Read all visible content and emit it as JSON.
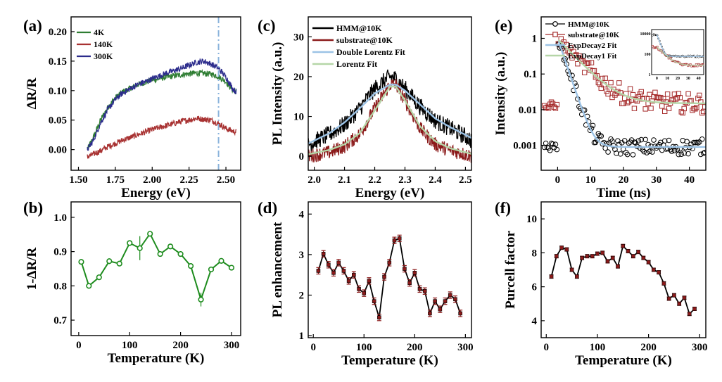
{
  "chart_data": [
    {
      "id": "a",
      "panel_label": "(a)",
      "type": "line",
      "xlabel": "Energy (eV)",
      "ylabel": "ΔR/R",
      "xlim": [
        1.45,
        2.6
      ],
      "ylim": [
        -0.035,
        0.225
      ],
      "xticks": [
        "1.50",
        "1.75",
        "2.00",
        "2.25",
        "2.50"
      ],
      "xtick_values": [
        1.5,
        1.75,
        2.0,
        2.25,
        2.5
      ],
      "yticks": [
        "0.00",
        "0.05",
        "0.10",
        "0.15",
        "0.20"
      ],
      "ytick_values": [
        0.0,
        0.05,
        0.1,
        0.15,
        0.2
      ],
      "vline": {
        "x": 2.45,
        "color": "#8bb4dc"
      },
      "legend_position": "top-left",
      "series": [
        {
          "name": "4K",
          "color": "#2e7d32",
          "noise": 0.005,
          "x": [
            1.56,
            1.6,
            1.65,
            1.7,
            1.75,
            1.8,
            1.9,
            2.0,
            2.1,
            2.2,
            2.3,
            2.4,
            2.45,
            2.5,
            2.55,
            2.57
          ],
          "y": [
            0.0,
            0.02,
            0.05,
            0.072,
            0.088,
            0.098,
            0.11,
            0.118,
            0.123,
            0.127,
            0.13,
            0.128,
            0.124,
            0.115,
            0.1,
            0.098
          ]
        },
        {
          "name": "140K",
          "color": "#a83232",
          "noise": 0.005,
          "x": [
            1.56,
            1.6,
            1.65,
            1.7,
            1.8,
            1.9,
            2.0,
            2.1,
            2.2,
            2.3,
            2.4,
            2.45,
            2.5,
            2.55,
            2.57
          ],
          "y": [
            -0.012,
            -0.008,
            -0.002,
            0.005,
            0.016,
            0.025,
            0.034,
            0.041,
            0.048,
            0.053,
            0.05,
            0.044,
            0.036,
            0.031,
            0.03
          ]
        },
        {
          "name": "300K",
          "color": "#2c2c8c",
          "noise": 0.005,
          "x": [
            1.56,
            1.6,
            1.65,
            1.7,
            1.75,
            1.8,
            1.9,
            2.0,
            2.1,
            2.2,
            2.3,
            2.35,
            2.4,
            2.45,
            2.5,
            2.55,
            2.57
          ],
          "y": [
            0.0,
            0.015,
            0.045,
            0.068,
            0.085,
            0.096,
            0.11,
            0.12,
            0.13,
            0.138,
            0.148,
            0.15,
            0.145,
            0.138,
            0.123,
            0.102,
            0.098
          ]
        }
      ]
    },
    {
      "id": "b",
      "panel_label": "(b)",
      "type": "line",
      "xlabel": "Temperature (K)",
      "ylabel": "1-ΔR/R",
      "xlim": [
        -15,
        318
      ],
      "ylim": [
        0.655,
        1.045
      ],
      "xticks": [
        "0",
        "100",
        "200",
        "300"
      ],
      "xtick_values": [
        0,
        100,
        200,
        300
      ],
      "yticks": [
        "0.7",
        "0.8",
        "0.9",
        "1.0"
      ],
      "ytick_values": [
        0.7,
        0.8,
        0.9,
        1.0
      ],
      "marker": "circle-open",
      "series": [
        {
          "name": "1-ΔR/R",
          "color": "#1e8c1e",
          "x": [
            5,
            20,
            40,
            60,
            80,
            100,
            120,
            140,
            160,
            180,
            200,
            220,
            240,
            260,
            280,
            300
          ],
          "y": [
            0.87,
            0.8,
            0.825,
            0.872,
            0.865,
            0.925,
            0.91,
            0.952,
            0.893,
            0.915,
            0.893,
            0.858,
            0.76,
            0.848,
            0.873,
            0.853
          ],
          "err": [
            0.008,
            0.008,
            0.008,
            0.008,
            0.008,
            0.008,
            0.035,
            0.008,
            0.008,
            0.008,
            0.008,
            0.008,
            0.02,
            0.008,
            0.008,
            0.008
          ]
        }
      ]
    },
    {
      "id": "c",
      "panel_label": "(c)",
      "type": "line",
      "xlabel": "Energy (eV)",
      "ylabel": "PL Intensity (a.u.)",
      "xlim": [
        1.98,
        2.52
      ],
      "ylim": [
        -3.5,
        35
      ],
      "xticks": [
        "2.0",
        "2.1",
        "2.2",
        "2.3",
        "2.4",
        "2.5"
      ],
      "xtick_values": [
        2.0,
        2.1,
        2.2,
        2.3,
        2.4,
        2.5
      ],
      "yticks": [
        "0",
        "10",
        "20",
        "30"
      ],
      "ytick_values": [
        0,
        10,
        20,
        30
      ],
      "legend_position": "top-left",
      "series": [
        {
          "name": "HMM@10K",
          "color": "#000000",
          "noise": 2.2,
          "style": "noisy",
          "x": [
            1.98,
            2.05,
            2.1,
            2.15,
            2.2,
            2.25,
            2.27,
            2.3,
            2.35,
            2.4,
            2.45,
            2.5,
            2.52
          ],
          "y": [
            3,
            5.5,
            8,
            12,
            17,
            20,
            19.5,
            17,
            12.5,
            9,
            7,
            5,
            4
          ]
        },
        {
          "name": "substrate@10K",
          "color": "#8b1a1a",
          "noise": 1.8,
          "style": "noisy",
          "x": [
            1.98,
            2.05,
            2.1,
            2.15,
            2.2,
            2.25,
            2.27,
            2.3,
            2.35,
            2.4,
            2.45,
            2.5,
            2.52
          ],
          "y": [
            0,
            1,
            2.5,
            5.5,
            12,
            18,
            18,
            14,
            7,
            3,
            1.5,
            0.5,
            0
          ]
        },
        {
          "name": "Double Lorentz Fit",
          "color": "#9cc3e6",
          "style": "fit",
          "x": [
            1.98,
            2.05,
            2.1,
            2.15,
            2.2,
            2.25,
            2.27,
            2.3,
            2.35,
            2.4,
            2.45,
            2.5,
            2.52
          ],
          "y": [
            3.2,
            5.8,
            8.5,
            12,
            15.8,
            18,
            18,
            16.5,
            13,
            9.5,
            7.3,
            5.4,
            4.6
          ]
        },
        {
          "name": "Lorentz Fit",
          "color": "#b5d6a7",
          "style": "fit",
          "x": [
            1.98,
            2.05,
            2.1,
            2.15,
            2.2,
            2.25,
            2.27,
            2.3,
            2.35,
            2.4,
            2.45,
            2.5,
            2.52
          ],
          "y": [
            0.5,
            1.6,
            3,
            5.8,
            11.5,
            17.5,
            17.5,
            14,
            7.5,
            3.8,
            2,
            1,
            0.6
          ]
        }
      ]
    },
    {
      "id": "d",
      "panel_label": "(d)",
      "type": "line",
      "xlabel": "Temperature (K)",
      "ylabel": "PL enhancement",
      "xlim": [
        -10,
        312
      ],
      "ylim": [
        0.95,
        4.3
      ],
      "xticks": [
        "0",
        "100",
        "200",
        "300"
      ],
      "xtick_values": [
        0,
        100,
        200,
        300
      ],
      "yticks": [
        "1",
        "2",
        "3",
        "4"
      ],
      "ytick_values": [
        1,
        2,
        3,
        4
      ],
      "marker": "square-filled",
      "series": [
        {
          "name": "PL enhancement",
          "color": "#8b1a1a",
          "line_color": "#000000",
          "x": [
            10,
            20,
            30,
            40,
            50,
            60,
            70,
            80,
            90,
            100,
            110,
            120,
            130,
            140,
            150,
            160,
            170,
            180,
            190,
            200,
            210,
            220,
            230,
            240,
            250,
            260,
            270,
            280,
            290
          ],
          "y": [
            2.6,
            3.02,
            2.75,
            2.55,
            2.8,
            2.6,
            2.35,
            2.5,
            2.15,
            2.05,
            2.35,
            1.85,
            1.45,
            2.45,
            2.8,
            3.35,
            3.4,
            2.65,
            2.3,
            2.55,
            2.15,
            2.1,
            1.55,
            1.85,
            1.65,
            1.85,
            2.0,
            1.9,
            1.55
          ],
          "err": 0.08
        }
      ]
    },
    {
      "id": "e",
      "panel_label": "(e)",
      "type": "scatter",
      "xlabel": "Time (ns)",
      "ylabel": "Intensity (a.u.)",
      "yscale": "log",
      "xlim": [
        -5,
        45
      ],
      "ylim": [
        0.0002,
        4
      ],
      "xticks": [
        "0",
        "10",
        "20",
        "30",
        "40"
      ],
      "xtick_values": [
        0,
        10,
        20,
        30,
        40
      ],
      "yticks": [
        "0.001",
        "0.01",
        "0.1",
        "1"
      ],
      "ytick_values": [
        0.001,
        0.01,
        0.1,
        1
      ],
      "legend_position": "top-left",
      "series": [
        {
          "name": "HMM@10K",
          "color": "#000000",
          "marker": "circle-open",
          "baseline": 0.0009,
          "amp": 1.0,
          "tau": 1.6,
          "pre": 0.0009,
          "scatter": 0.45
        },
        {
          "name": "substrate@10K",
          "color": "#a52a2a",
          "marker": "square-open",
          "baseline": 0.015,
          "amp": 0.95,
          "tau": 4.5,
          "pre": 0.012,
          "scatter": 0.55
        },
        {
          "name": "ExpDecay2 Fit",
          "color": "#9cc3e6",
          "marker": "line",
          "baseline": 0.0009,
          "amp": 1.0,
          "tau": 1.6
        },
        {
          "name": "ExpDecay1 Fit",
          "color": "#b5d6a7",
          "marker": "line",
          "baseline": 0.015,
          "amp": 0.95,
          "tau": 4.5
        }
      ],
      "inset": {
        "xticks": [
          "0",
          "10",
          "20",
          "30",
          "40"
        ],
        "yticks": [
          "1",
          "100",
          "10000"
        ],
        "note": "linear-time semilog inset of raw counts"
      }
    },
    {
      "id": "f",
      "panel_label": "(f)",
      "type": "line",
      "xlabel": "Temperature (K)",
      "ylabel": "Purcell factor",
      "xlim": [
        -10,
        312
      ],
      "ylim": [
        3.0,
        11.0
      ],
      "xticks": [
        "0",
        "100",
        "200",
        "300"
      ],
      "xtick_values": [
        0,
        100,
        200,
        300
      ],
      "yticks": [
        "4",
        "6",
        "8",
        "10"
      ],
      "ytick_values": [
        4,
        6,
        8,
        10
      ],
      "marker": "square-filled",
      "series": [
        {
          "name": "Purcell factor",
          "color": "#8b1a1a",
          "line_color": "#000000",
          "x": [
            10,
            20,
            30,
            40,
            50,
            60,
            70,
            80,
            90,
            100,
            110,
            120,
            130,
            140,
            150,
            160,
            170,
            180,
            190,
            200,
            210,
            220,
            230,
            240,
            250,
            260,
            270,
            280,
            290
          ],
          "y": [
            6.6,
            7.8,
            8.3,
            8.2,
            7.0,
            6.6,
            7.7,
            7.8,
            7.8,
            7.95,
            8.0,
            7.5,
            7.7,
            7.2,
            8.4,
            8.1,
            7.8,
            8.05,
            7.7,
            7.45,
            7.0,
            6.85,
            6.2,
            5.3,
            5.5,
            5.0,
            5.35,
            4.4,
            4.7
          ],
          "err": 0.1
        }
      ]
    }
  ]
}
